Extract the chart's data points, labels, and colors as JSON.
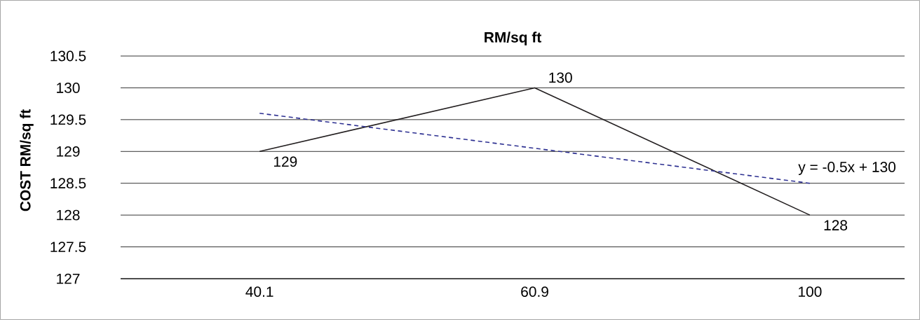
{
  "chart_data": {
    "type": "line",
    "title": "RM/sq ft",
    "ylabel": "COST RM/sq ft",
    "categories": [
      "40.1",
      "60.9",
      "100"
    ],
    "series": [
      {
        "color": "#231f20",
        "values": [
          129,
          130,
          128
        ],
        "value_labels": [
          "129",
          "130",
          "128"
        ],
        "line_style": "solid"
      },
      {
        "type": "line",
        "color": "#2e3192",
        "values": [
          129.6,
          129.05,
          128.5
        ],
        "line_style": "dashed"
      }
    ],
    "annotations": [
      "y = -0.5x + 130"
    ],
    "ylim": [
      127,
      130.5
    ],
    "yticks": [
      127,
      127.5,
      128,
      128.5,
      129,
      129.5,
      130,
      130.5
    ],
    "grid": "y",
    "marker": "none"
  }
}
